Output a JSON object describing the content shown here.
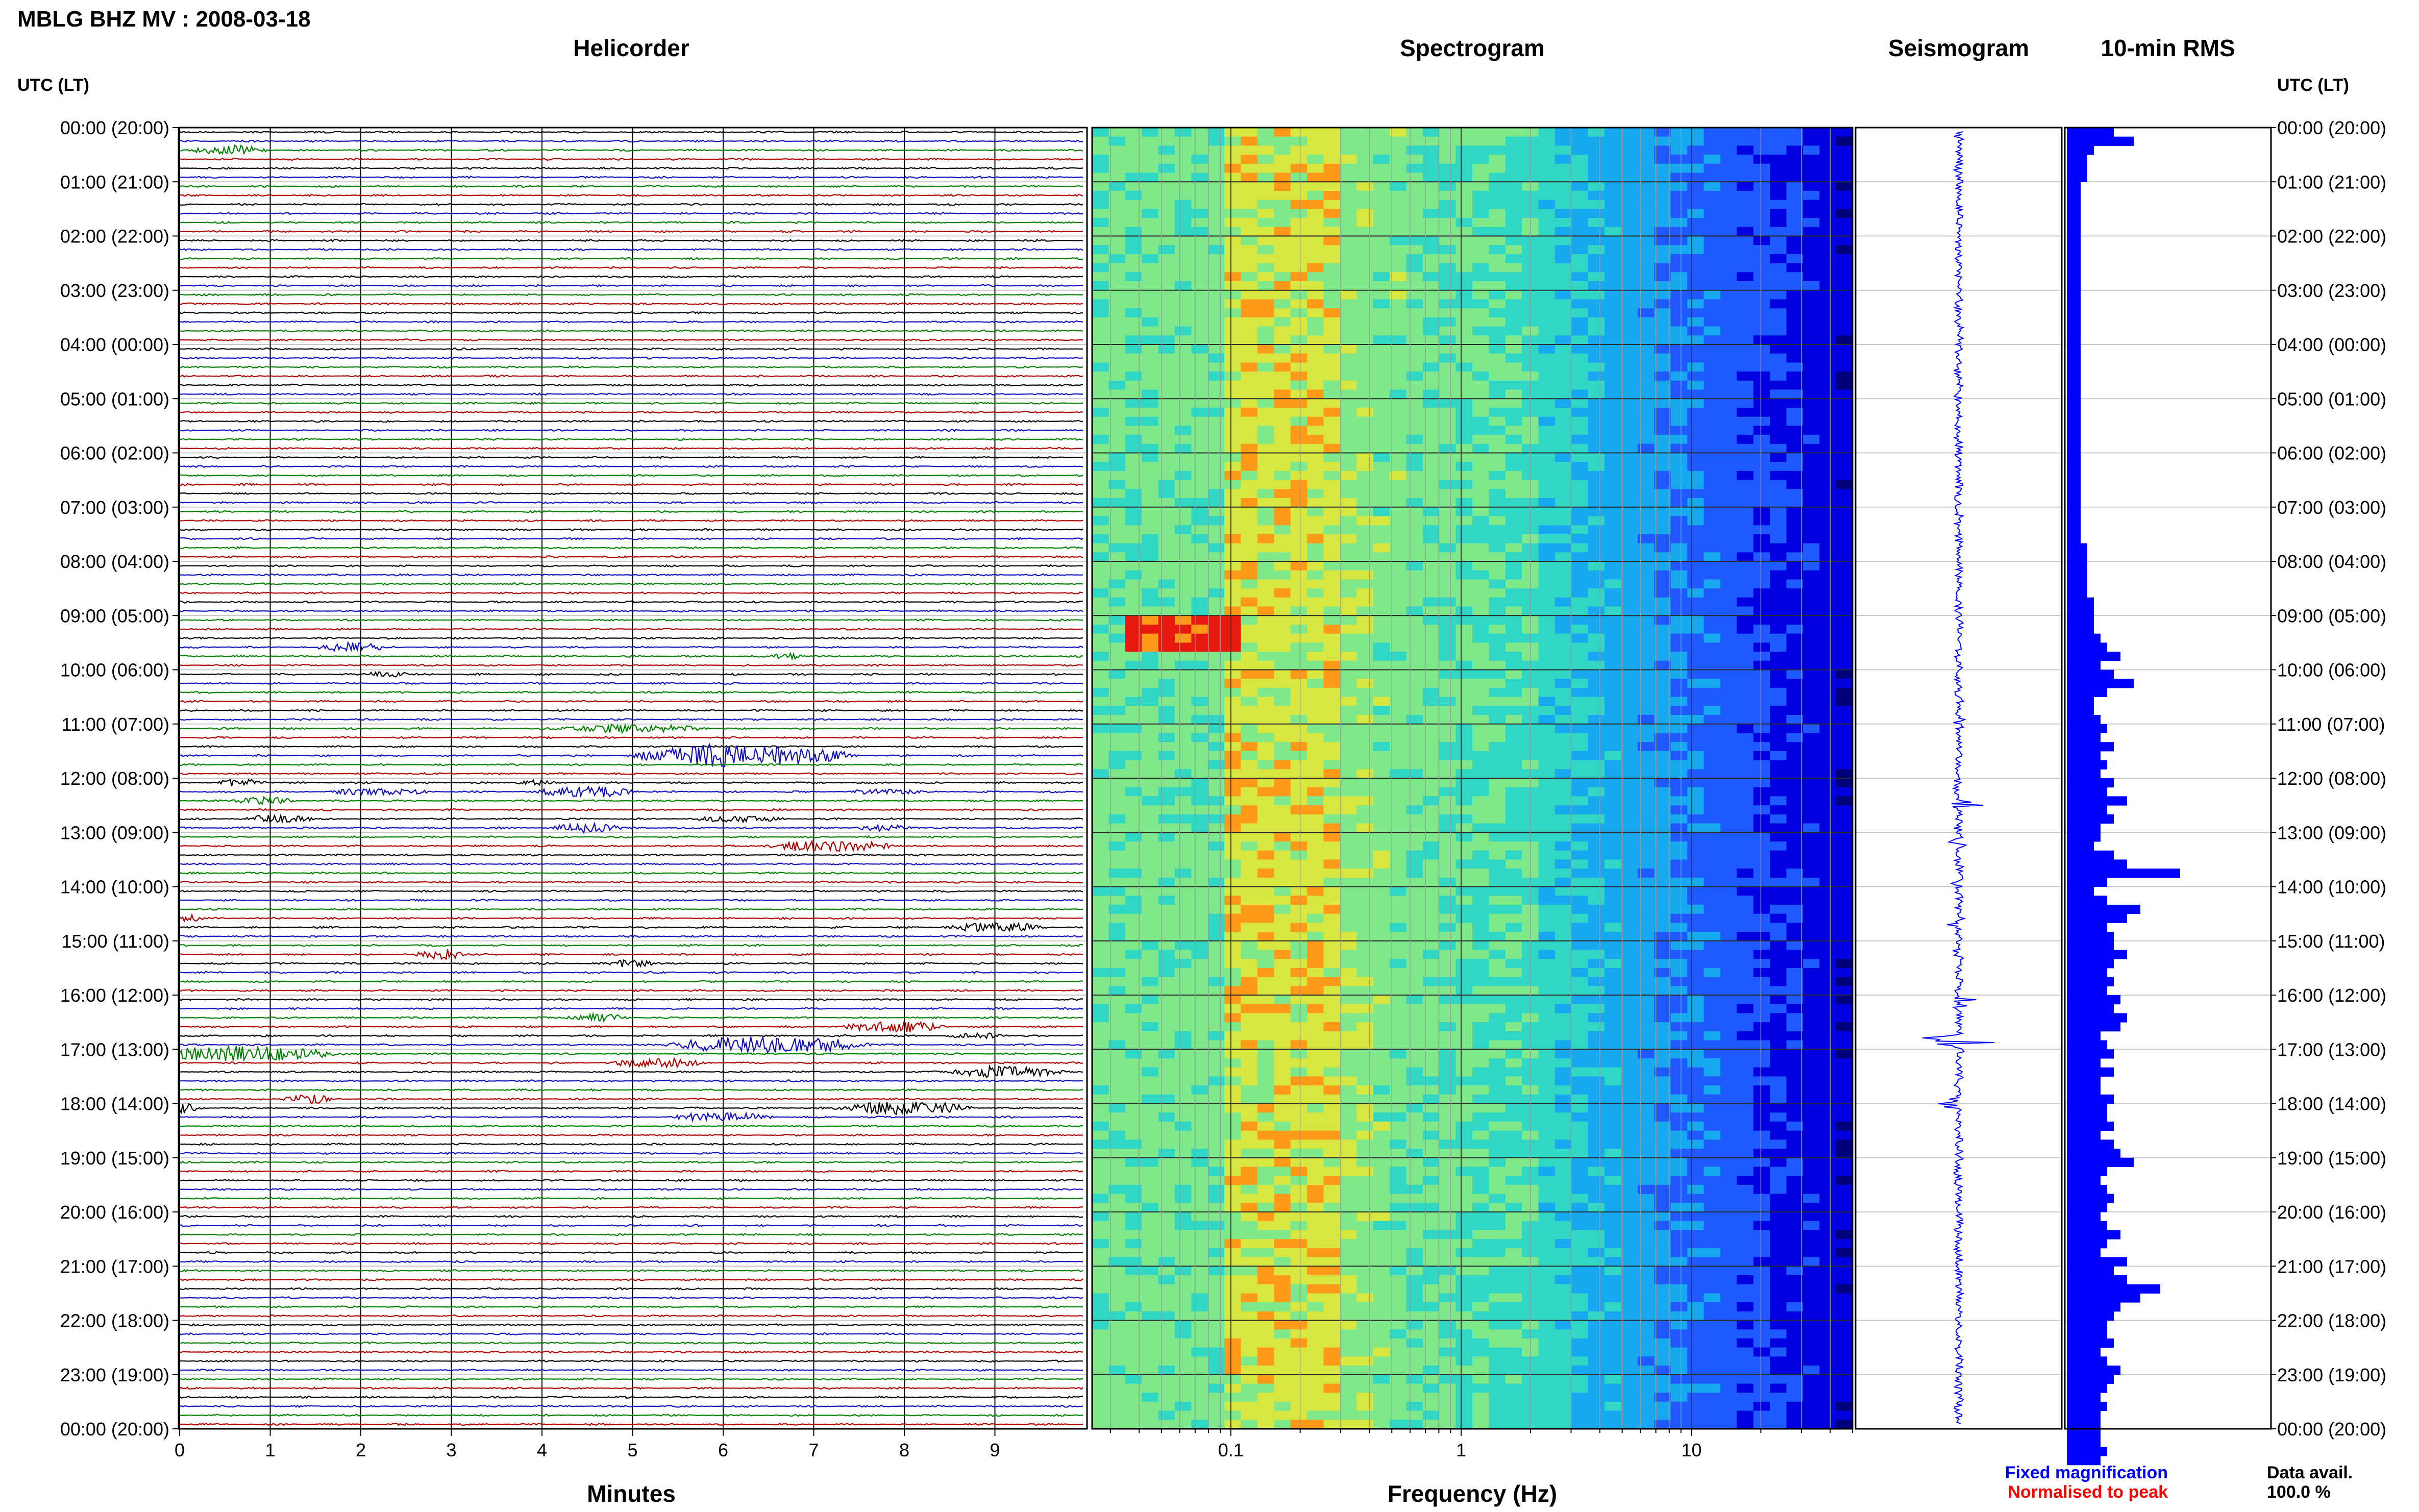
{
  "chart_data": {
    "type": "helicorder-panel",
    "title": "MBLG BHZ MV : 2008-03-18",
    "panels": {
      "helicorder": "Helicorder",
      "spectrogram": "Spectrogram",
      "seismogram": "Seismogram",
      "rms": "10-min RMS"
    },
    "time_axis_label": "UTC (LT)",
    "time_ticks": [
      "00:00 (20:00)",
      "01:00 (21:00)",
      "02:00 (22:00)",
      "03:00 (23:00)",
      "04:00 (00:00)",
      "05:00 (01:00)",
      "06:00 (02:00)",
      "07:00 (03:00)",
      "08:00 (04:00)",
      "09:00 (05:00)",
      "10:00 (06:00)",
      "11:00 (07:00)",
      "12:00 (08:00)",
      "13:00 (09:00)",
      "14:00 (10:00)",
      "15:00 (11:00)",
      "16:00 (12:00)",
      "17:00 (13:00)",
      "18:00 (14:00)",
      "19:00 (15:00)",
      "20:00 (16:00)",
      "21:00 (17:00)",
      "22:00 (18:00)",
      "23:00 (19:00)",
      "00:00 (20:00)"
    ],
    "minutes_xlabel": "Minutes",
    "minutes_ticks": [
      0,
      1,
      2,
      3,
      4,
      5,
      6,
      7,
      8,
      9
    ],
    "freq_xlabel": "Frequency (Hz)",
    "freq_range": [
      0.025,
      50
    ],
    "freq_ticks": [
      "0.1",
      "1",
      "10"
    ],
    "trace_colors": [
      "#000000",
      "#1010c0",
      "#008000",
      "#b00000"
    ],
    "spectrogram_colormap": [
      "#00007a",
      "#0000e0",
      "#1e5aff",
      "#17a8ef",
      "#2fd7c4",
      "#7fe88a",
      "#d8e640",
      "#ff9a18",
      "#e81a10"
    ],
    "rms_color": "#0000ff",
    "rms_values": [
      0.14,
      0.17,
      0.11,
      0.1,
      0.1,
      0.1,
      0.09,
      0.09,
      0.09,
      0.09,
      0.09,
      0.09,
      0.09,
      0.09,
      0.09,
      0.09,
      0.09,
      0.09,
      0.09,
      0.09,
      0.09,
      0.09,
      0.09,
      0.09,
      0.09,
      0.09,
      0.09,
      0.09,
      0.09,
      0.09,
      0.09,
      0.09,
      0.09,
      0.09,
      0.09,
      0.09,
      0.09,
      0.09,
      0.09,
      0.09,
      0.09,
      0.09,
      0.09,
      0.09,
      0.09,
      0.09,
      0.1,
      0.1,
      0.1,
      0.1,
      0.1,
      0.1,
      0.11,
      0.11,
      0.11,
      0.11,
      0.12,
      0.13,
      0.15,
      0.12,
      0.14,
      0.17,
      0.13,
      0.11,
      0.11,
      0.12,
      0.13,
      0.12,
      0.14,
      0.12,
      0.13,
      0.12,
      0.14,
      0.13,
      0.16,
      0.13,
      0.14,
      0.12,
      0.12,
      0.11,
      0.14,
      0.16,
      0.24,
      0.13,
      0.11,
      0.13,
      0.18,
      0.16,
      0.13,
      0.14,
      0.14,
      0.16,
      0.14,
      0.13,
      0.14,
      0.13,
      0.15,
      0.14,
      0.16,
      0.15,
      0.12,
      0.13,
      0.14,
      0.12,
      0.14,
      0.12,
      0.12,
      0.14,
      0.13,
      0.13,
      0.14,
      0.12,
      0.14,
      0.15,
      0.17,
      0.13,
      0.12,
      0.13,
      0.14,
      0.13,
      0.12,
      0.13,
      0.15,
      0.13,
      0.12,
      0.16,
      0.14,
      0.16,
      0.21,
      0.18,
      0.15,
      0.14,
      0.13,
      0.13,
      0.14,
      0.12,
      0.13,
      0.15,
      0.14,
      0.13,
      0.12,
      0.13,
      0.12,
      0.12,
      0.12,
      0.12,
      0.13,
      0.12
    ],
    "legend": {
      "fixed": "Fixed magnification",
      "normalised": "Normalised to peak"
    },
    "legend_colors": {
      "fixed": "#0000ff",
      "normalised": "#ff0000"
    },
    "data_avail_label": "Data avail.",
    "data_avail_value": "100.0 %"
  }
}
